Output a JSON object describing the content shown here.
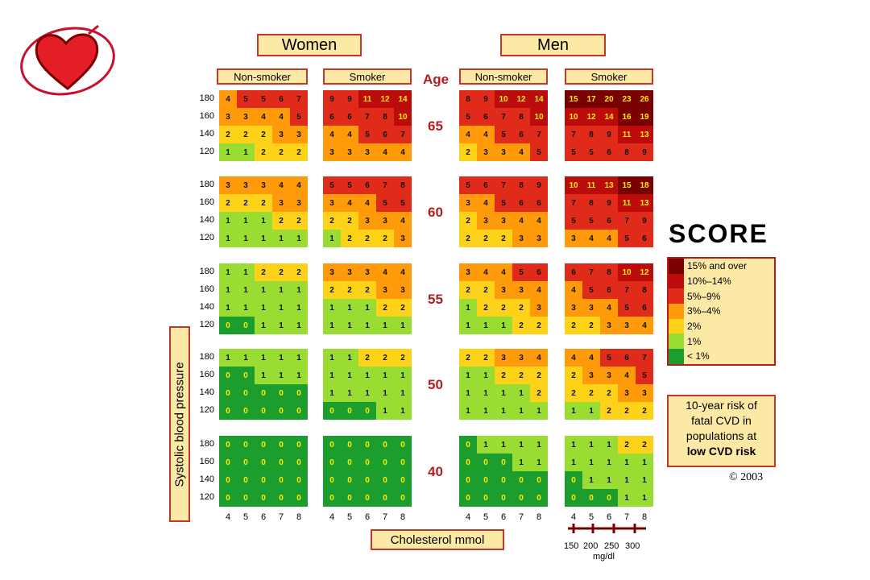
{
  "titles": {
    "women": "Women",
    "men": "Men",
    "age": "Age"
  },
  "groups": [
    "Non-smoker",
    "Smoker",
    "Non-smoker",
    "Smoker"
  ],
  "y_axis_label": "Systolic blood pressure",
  "x_axis_label": "Cholesterol mmol",
  "bp_levels": [
    "180",
    "160",
    "140",
    "120"
  ],
  "cholesterol_ticks": [
    "4",
    "5",
    "6",
    "7",
    "8"
  ],
  "mgdl_ticks": [
    "150",
    "200",
    "250",
    "300"
  ],
  "mgdl_unit": "mg/dl",
  "brand": "SCORE",
  "legend": [
    "15% and over",
    "10%–14%",
    "5%–9%",
    "3%–4%",
    "2%",
    "1%",
    "< 1%"
  ],
  "legend_colors": [
    "#7a0000",
    "#bb0b0b",
    "#e02a1a",
    "#ff9b0a",
    "#ffd21a",
    "#99dd33",
    "#1c9e2f"
  ],
  "note": {
    "line1": "10-year risk of",
    "line2": "fatal CVD in",
    "line3": "populations at",
    "line4": "low CVD risk"
  },
  "copyright": "© 2003",
  "chart_data": {
    "type": "heatmap",
    "title": "10-year risk of fatal CVD in populations at low CVD risk",
    "xlabel": "Cholesterol mmol",
    "ylabel": "Systolic blood pressure",
    "x": [
      4,
      5,
      6,
      7,
      8
    ],
    "y": [
      180,
      160,
      140,
      120
    ],
    "panels": [
      {
        "age": "65",
        "sex": "Women",
        "smoking": "Non-smoker",
        "values": [
          [
            4,
            5,
            5,
            6,
            7
          ],
          [
            3,
            3,
            4,
            4,
            5
          ],
          [
            2,
            2,
            2,
            3,
            3
          ],
          [
            1,
            1,
            2,
            2,
            2
          ]
        ]
      },
      {
        "age": "65",
        "sex": "Women",
        "smoking": "Smoker",
        "values": [
          [
            9,
            9,
            11,
            12,
            14
          ],
          [
            6,
            6,
            7,
            8,
            10
          ],
          [
            4,
            4,
            5,
            6,
            7
          ],
          [
            3,
            3,
            3,
            4,
            4
          ]
        ]
      },
      {
        "age": "65",
        "sex": "Men",
        "smoking": "Non-smoker",
        "values": [
          [
            8,
            9,
            10,
            12,
            14
          ],
          [
            5,
            6,
            7,
            8,
            10
          ],
          [
            4,
            4,
            5,
            6,
            7
          ],
          [
            2,
            3,
            3,
            4,
            5
          ]
        ]
      },
      {
        "age": "65",
        "sex": "Men",
        "smoking": "Smoker",
        "values": [
          [
            15,
            17,
            20,
            23,
            26
          ],
          [
            10,
            12,
            14,
            16,
            19
          ],
          [
            7,
            8,
            9,
            11,
            13
          ],
          [
            5,
            5,
            6,
            8,
            9
          ]
        ]
      },
      {
        "age": "60",
        "sex": "Women",
        "smoking": "Non-smoker",
        "values": [
          [
            3,
            3,
            3,
            4,
            4
          ],
          [
            2,
            2,
            2,
            3,
            3
          ],
          [
            1,
            1,
            1,
            2,
            2
          ],
          [
            1,
            1,
            1,
            1,
            1
          ]
        ]
      },
      {
        "age": "60",
        "sex": "Women",
        "smoking": "Smoker",
        "values": [
          [
            5,
            5,
            6,
            7,
            8
          ],
          [
            3,
            4,
            4,
            5,
            5
          ],
          [
            2,
            2,
            3,
            3,
            4
          ],
          [
            1,
            2,
            2,
            2,
            3
          ]
        ]
      },
      {
        "age": "60",
        "sex": "Men",
        "smoking": "Non-smoker",
        "values": [
          [
            5,
            6,
            7,
            8,
            9
          ],
          [
            3,
            4,
            5,
            6,
            6
          ],
          [
            2,
            3,
            3,
            4,
            4
          ],
          [
            2,
            2,
            2,
            3,
            3
          ]
        ]
      },
      {
        "age": "60",
        "sex": "Men",
        "smoking": "Smoker",
        "values": [
          [
            10,
            11,
            13,
            15,
            18
          ],
          [
            7,
            8,
            9,
            11,
            13
          ],
          [
            5,
            5,
            6,
            7,
            9
          ],
          [
            3,
            4,
            4,
            5,
            6
          ]
        ]
      },
      {
        "age": "55",
        "sex": "Women",
        "smoking": "Non-smoker",
        "values": [
          [
            1,
            1,
            2,
            2,
            2
          ],
          [
            1,
            1,
            1,
            1,
            1
          ],
          [
            1,
            1,
            1,
            1,
            1
          ],
          [
            0,
            0,
            1,
            1,
            1
          ]
        ]
      },
      {
        "age": "55",
        "sex": "Women",
        "smoking": "Smoker",
        "values": [
          [
            3,
            3,
            3,
            4,
            4
          ],
          [
            2,
            2,
            2,
            3,
            3
          ],
          [
            1,
            1,
            1,
            2,
            2
          ],
          [
            1,
            1,
            1,
            1,
            1
          ]
        ]
      },
      {
        "age": "55",
        "sex": "Men",
        "smoking": "Non-smoker",
        "values": [
          [
            3,
            4,
            4,
            5,
            6
          ],
          [
            2,
            2,
            3,
            3,
            4
          ],
          [
            1,
            2,
            2,
            2,
            3
          ],
          [
            1,
            1,
            1,
            2,
            2
          ]
        ]
      },
      {
        "age": "55",
        "sex": "Men",
        "smoking": "Smoker",
        "values": [
          [
            6,
            7,
            8,
            10,
            12
          ],
          [
            4,
            5,
            6,
            7,
            8
          ],
          [
            3,
            3,
            4,
            5,
            6
          ],
          [
            2,
            2,
            3,
            3,
            4
          ]
        ]
      },
      {
        "age": "50",
        "sex": "Women",
        "smoking": "Non-smoker",
        "values": [
          [
            1,
            1,
            1,
            1,
            1
          ],
          [
            0,
            0,
            1,
            1,
            1
          ],
          [
            0,
            0,
            0,
            0,
            0
          ],
          [
            0,
            0,
            0,
            0,
            0
          ]
        ]
      },
      {
        "age": "50",
        "sex": "Women",
        "smoking": "Smoker",
        "values": [
          [
            1,
            1,
            2,
            2,
            2
          ],
          [
            1,
            1,
            1,
            1,
            1
          ],
          [
            1,
            1,
            1,
            1,
            1
          ],
          [
            0,
            0,
            0,
            1,
            1
          ]
        ]
      },
      {
        "age": "50",
        "sex": "Men",
        "smoking": "Non-smoker",
        "values": [
          [
            2,
            2,
            3,
            3,
            4
          ],
          [
            1,
            1,
            2,
            2,
            2
          ],
          [
            1,
            1,
            1,
            1,
            2
          ],
          [
            1,
            1,
            1,
            1,
            1
          ]
        ]
      },
      {
        "age": "50",
        "sex": "Men",
        "smoking": "Smoker",
        "values": [
          [
            4,
            4,
            5,
            6,
            7
          ],
          [
            2,
            3,
            3,
            4,
            5
          ],
          [
            2,
            2,
            2,
            3,
            3
          ],
          [
            1,
            1,
            2,
            2,
            2
          ]
        ]
      },
      {
        "age": "40",
        "sex": "Women",
        "smoking": "Non-smoker",
        "values": [
          [
            0,
            0,
            0,
            0,
            0
          ],
          [
            0,
            0,
            0,
            0,
            0
          ],
          [
            0,
            0,
            0,
            0,
            0
          ],
          [
            0,
            0,
            0,
            0,
            0
          ]
        ]
      },
      {
        "age": "40",
        "sex": "Women",
        "smoking": "Smoker",
        "values": [
          [
            0,
            0,
            0,
            0,
            0
          ],
          [
            0,
            0,
            0,
            0,
            0
          ],
          [
            0,
            0,
            0,
            0,
            0
          ],
          [
            0,
            0,
            0,
            0,
            0
          ]
        ]
      },
      {
        "age": "40",
        "sex": "Men",
        "smoking": "Non-smoker",
        "values": [
          [
            0,
            1,
            1,
            1,
            1
          ],
          [
            0,
            0,
            0,
            1,
            1
          ],
          [
            0,
            0,
            0,
            0,
            0
          ],
          [
            0,
            0,
            0,
            0,
            0
          ]
        ]
      },
      {
        "age": "40",
        "sex": "Men",
        "smoking": "Smoker",
        "values": [
          [
            1,
            1,
            1,
            2,
            2
          ],
          [
            1,
            1,
            1,
            1,
            1
          ],
          [
            0,
            1,
            1,
            1,
            1
          ],
          [
            0,
            0,
            0,
            1,
            1
          ]
        ]
      }
    ]
  }
}
